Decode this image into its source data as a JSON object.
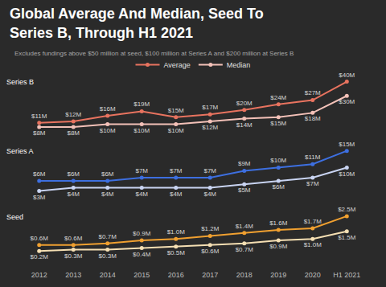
{
  "title": "Global Average And Median, Seed To Series B, Through H1 2021",
  "subtitle": "Excludes fundings above $50 million at seed, $100 million at Series A and $200 million at Series B",
  "chart_data": [
    {
      "type": "line",
      "title": "Series B",
      "categories": [
        "2012",
        "2013",
        "2014",
        "2015",
        "2016",
        "2017",
        "2018",
        "2019",
        "2020",
        "H1 2021"
      ],
      "legend": "top",
      "tick_labels": false,
      "data_labels": true,
      "marker": "circle",
      "line_style": "solid",
      "series": [
        {
          "name": "Average",
          "color": "#e8735f",
          "values": [
            11,
            12,
            16,
            19,
            15,
            17,
            20,
            24,
            27,
            40
          ],
          "value_labels": [
            "$11M",
            "$12M",
            "$16M",
            "$19M",
            "$15M",
            "$17M",
            "$20M",
            "$24M",
            "$27M",
            "$40M"
          ]
        },
        {
          "name": "Median",
          "color": "#f3c1b8",
          "values": [
            8,
            8,
            10,
            10,
            10,
            12,
            14,
            15,
            18,
            30
          ],
          "value_labels": [
            "$8M",
            "$8M",
            "$10M",
            "$10M",
            "$10M",
            "$12M",
            "$14M",
            "$15M",
            "$18M",
            "$30M"
          ]
        }
      ]
    },
    {
      "type": "line",
      "title": "Series A",
      "categories": [
        "2012",
        "2013",
        "2014",
        "2015",
        "2016",
        "2017",
        "2018",
        "2019",
        "2020",
        "H1 2021"
      ],
      "tick_labels": false,
      "data_labels": true,
      "marker": "circle",
      "line_style": "solid",
      "series": [
        {
          "name": "Average",
          "color": "#3d6fe0",
          "values": [
            6,
            6,
            6,
            7,
            7,
            7,
            9,
            10,
            11,
            15
          ],
          "value_labels": [
            "$6M",
            "$6M",
            "$6M",
            "$7M",
            "$7M",
            "$7M",
            "$9M",
            "$10M",
            "$11M",
            "$15M"
          ]
        },
        {
          "name": "Median",
          "color": "#c9d4f2",
          "values": [
            3,
            4,
            4,
            4,
            4,
            4,
            5,
            6,
            7,
            10
          ],
          "value_labels": [
            "$3M",
            "$4M",
            "$4M",
            "$4M",
            "$4M",
            "$4M",
            "$5M",
            "$6M",
            "$7M",
            "$10M"
          ]
        }
      ]
    },
    {
      "type": "line",
      "title": "Seed",
      "categories": [
        "2012",
        "2013",
        "2014",
        "2015",
        "2016",
        "2017",
        "2018",
        "2019",
        "2020",
        "H1 2021"
      ],
      "tick_labels": "x",
      "data_labels": true,
      "marker": "circle",
      "line_style": "solid",
      "series": [
        {
          "name": "Average",
          "color": "#f0a030",
          "values": [
            0.6,
            0.6,
            0.7,
            0.9,
            1.0,
            1.2,
            1.4,
            1.6,
            1.7,
            2.5
          ],
          "value_labels": [
            "$0.6M",
            "$0.6M",
            "$0.7M",
            "$0.9M",
            "$1.0M",
            "$1.2M",
            "$1.4M",
            "$1.6M",
            "$1.7M",
            "$2.5M"
          ]
        },
        {
          "name": "Median",
          "color": "#f5dfb3",
          "values": [
            0.2,
            0.3,
            0.3,
            0.4,
            0.5,
            0.6,
            0.7,
            0.9,
            1.0,
            1.5
          ],
          "value_labels": [
            "$0.2M",
            "$0.3M",
            "$0.3M",
            "$0.4M",
            "$0.5M",
            "$0.6M",
            "$0.7M",
            "$0.9M",
            "$1.0M",
            "$1.5M"
          ]
        }
      ]
    }
  ]
}
